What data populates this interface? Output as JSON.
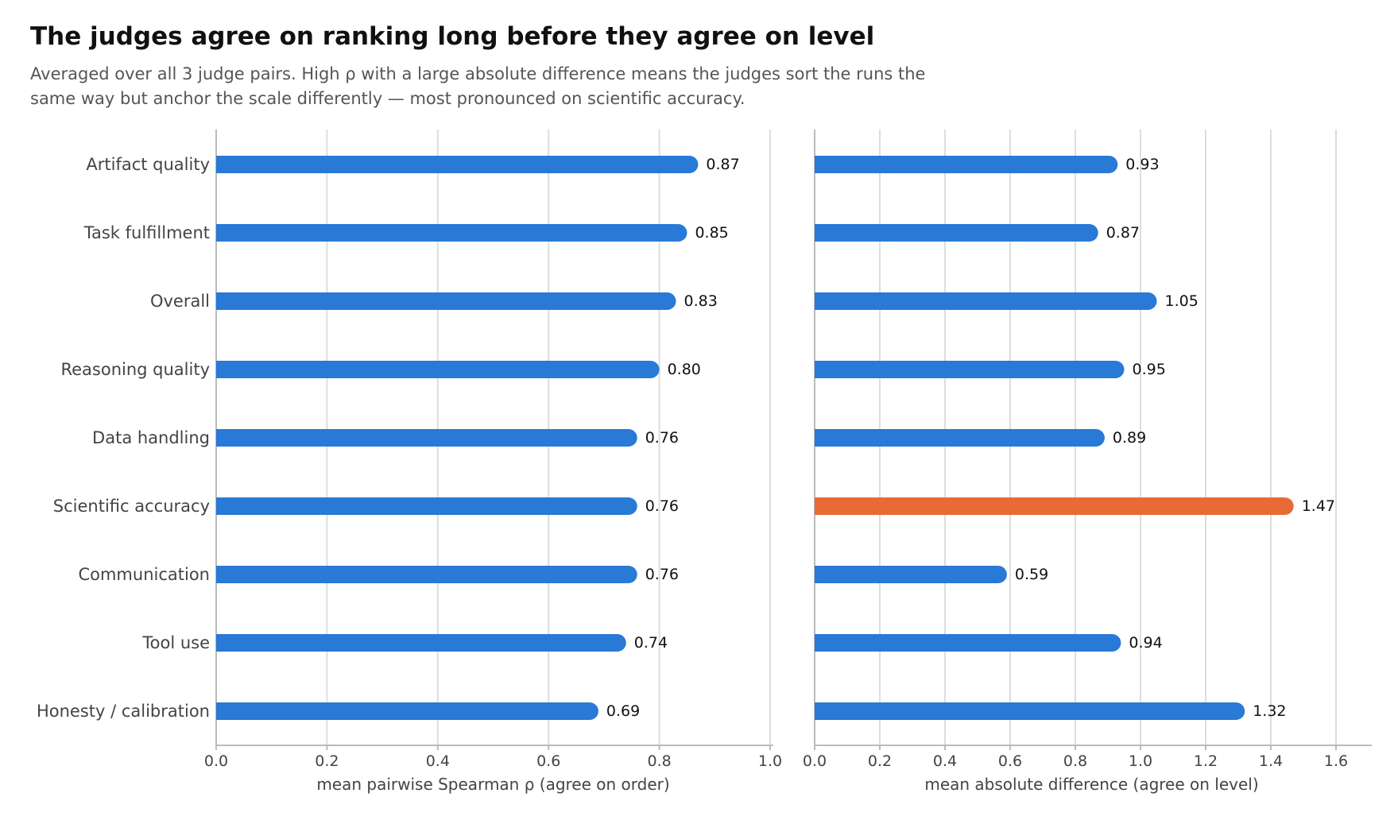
{
  "title": "The judges agree on ranking long before they agree on level",
  "subtitle_lines": [
    "Averaged over all 3 judge pairs. High ρ with a large absolute difference means the judges sort the runs the",
    "same way but anchor the scale differently — most pronounced on scientific accuracy."
  ],
  "colors": {
    "bar": "#2979d6",
    "highlight": "#ea6a35",
    "grid": "#dddddd",
    "axis": "#bbbbbb",
    "label": "#444444"
  },
  "chart_data": [
    {
      "type": "bar",
      "orientation": "horizontal",
      "categories": [
        "Artifact quality",
        "Task fulfillment",
        "Overall",
        "Reasoning quality",
        "Data handling",
        "Scientific accuracy",
        "Communication",
        "Tool use",
        "Honesty / calibration"
      ],
      "values": [
        0.87,
        0.85,
        0.83,
        0.8,
        0.76,
        0.76,
        0.76,
        0.74,
        0.69
      ],
      "value_labels": [
        "0.87",
        "0.85",
        "0.83",
        "0.80",
        "0.76",
        "0.76",
        "0.76",
        "0.74",
        "0.69"
      ],
      "xlabel": "mean pairwise Spearman ρ  (agree on order)",
      "xlim": [
        0,
        1.0
      ],
      "xticks": [
        0.0,
        0.2,
        0.4,
        0.6,
        0.8,
        1.0
      ],
      "xtick_labels": [
        "0.0",
        "0.2",
        "0.4",
        "0.6",
        "0.8",
        "1.0"
      ],
      "grid": true,
      "highlight_category": null
    },
    {
      "type": "bar",
      "orientation": "horizontal",
      "categories": [
        "Artifact quality",
        "Task fulfillment",
        "Overall",
        "Reasoning quality",
        "Data handling",
        "Scientific accuracy",
        "Communication",
        "Tool use",
        "Honesty / calibration"
      ],
      "values": [
        0.93,
        0.87,
        1.05,
        0.95,
        0.89,
        1.47,
        0.59,
        0.94,
        1.32
      ],
      "value_labels": [
        "0.93",
        "0.87",
        "1.05",
        "0.95",
        "0.89",
        "1.47",
        "0.59",
        "0.94",
        "1.32"
      ],
      "xlabel": "mean absolute difference  (agree on level)",
      "xlim": [
        0,
        1.7
      ],
      "xticks": [
        0.0,
        0.2,
        0.4,
        0.6,
        0.8,
        1.0,
        1.2,
        1.4,
        1.6
      ],
      "xtick_labels": [
        "0.0",
        "0.2",
        "0.4",
        "0.6",
        "0.8",
        "1.0",
        "1.2",
        "1.4",
        "1.6"
      ],
      "grid": true,
      "highlight_category": "Scientific accuracy"
    }
  ]
}
